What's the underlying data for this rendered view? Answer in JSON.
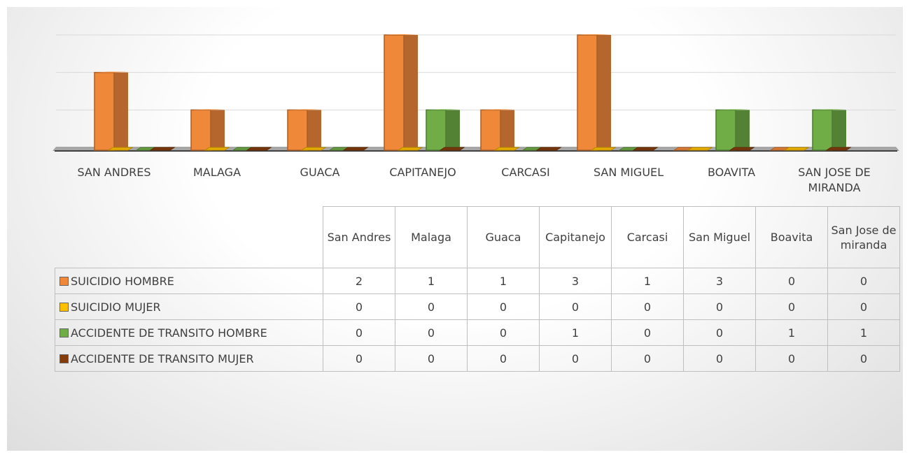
{
  "chart_data": {
    "type": "bar3d",
    "categories": [
      "SAN ANDRES",
      "MALAGA",
      "GUACA",
      "CAPITANEJO",
      "CARCASI",
      "SAN MIGUEL",
      "BOAVITA",
      "SAN JOSE DE MIRANDA"
    ],
    "table_categories": [
      "San Andres",
      "Malaga",
      "Guaca",
      "Capitanejo",
      "Carcasi",
      "San Miguel",
      "Boavita",
      "San Jose de miranda"
    ],
    "series": [
      {
        "name": "SUICIDIO HOMBRE",
        "color": "#f0883a",
        "values": [
          2,
          1,
          1,
          3,
          1,
          3,
          0,
          0
        ]
      },
      {
        "name": "SUICIDIO MUJER",
        "color": "#ffc000",
        "values": [
          0,
          0,
          0,
          0,
          0,
          0,
          0,
          0
        ]
      },
      {
        "name": "ACCIDENTE DE TRANSITO HOMBRE",
        "color": "#70ad47",
        "values": [
          0,
          0,
          0,
          1,
          0,
          0,
          1,
          1
        ]
      },
      {
        "name": "ACCIDENTE DE TRANSITO MUJER",
        "color": "#843c0c",
        "values": [
          0,
          0,
          0,
          0,
          0,
          0,
          0,
          0
        ]
      }
    ],
    "ylim": [
      0,
      3
    ],
    "yticks": [
      0,
      1,
      2,
      3
    ],
    "grid": true
  }
}
